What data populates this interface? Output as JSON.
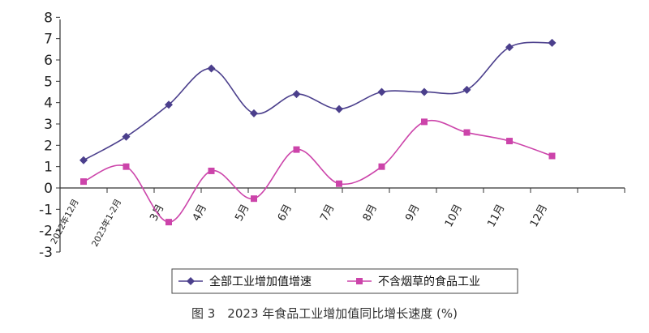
{
  "caption": "图 3　2023 年食品工业增加值同比增长速度 (%)",
  "chart_data": {
    "type": "line",
    "categories": [
      "2022年12月",
      "2023年1-2月",
      "3月",
      "4月",
      "5月",
      "6月",
      "7月",
      "8月",
      "9月",
      "10月",
      "11月",
      "12月"
    ],
    "ylim": [
      -3,
      8
    ],
    "yticks": [
      8,
      7,
      6,
      5,
      4,
      3,
      2,
      1,
      0,
      -1,
      -2,
      -3
    ],
    "grid": false,
    "legend_position": "bottom-center",
    "series": [
      {
        "name": "全部工业增加值增速",
        "color": "#4b3f8c",
        "marker": "diamond",
        "values": [
          1.3,
          2.4,
          3.9,
          5.6,
          3.5,
          4.4,
          3.7,
          4.5,
          4.5,
          4.6,
          6.6,
          6.8
        ]
      },
      {
        "name": "不含烟草的食品工业",
        "color": "#cc44aa",
        "marker": "square",
        "values": [
          0.3,
          1.0,
          -1.6,
          0.8,
          -0.5,
          1.8,
          0.2,
          1.0,
          3.1,
          2.6,
          2.2,
          1.5
        ]
      }
    ]
  }
}
